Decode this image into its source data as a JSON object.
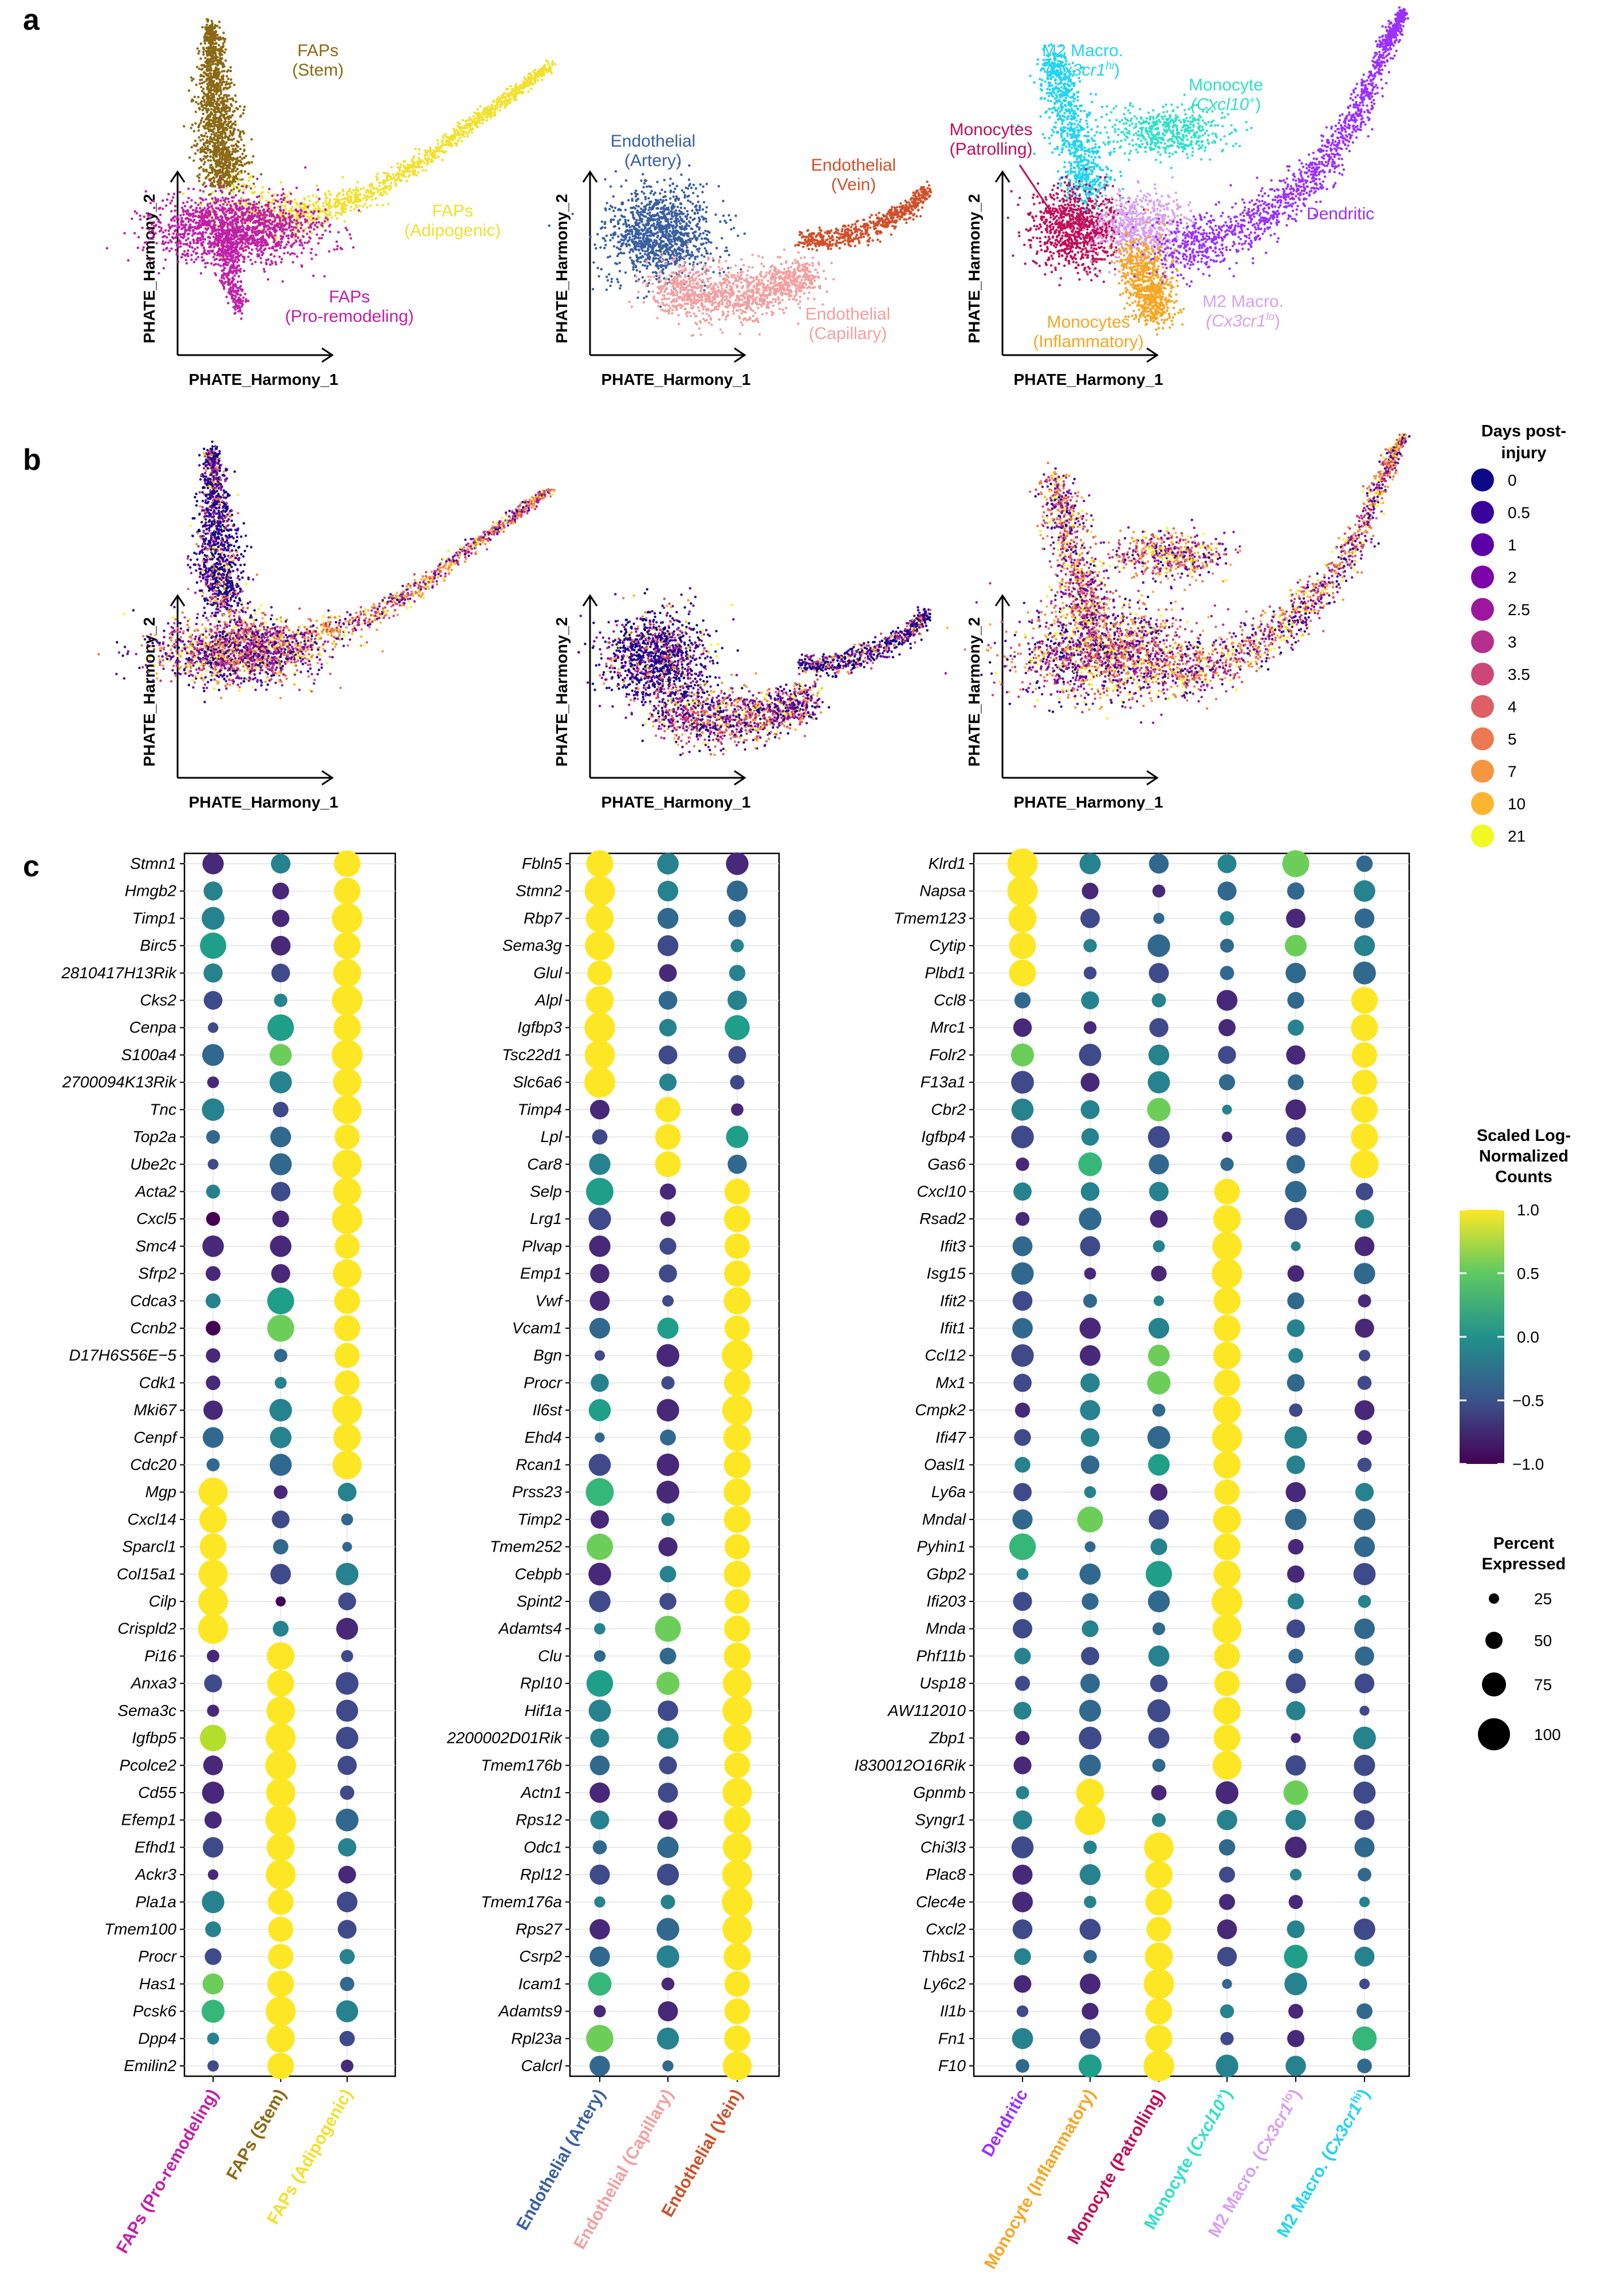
{
  "panels": {
    "a": "a",
    "b": "b",
    "c": "c"
  },
  "axes": {
    "x": "PHATE_Harmony_1",
    "y": "PHATE_Harmony_2"
  },
  "colors": {
    "faps_stem": "#8B6914",
    "faps_adipogenic": "#F2E02C",
    "faps_proremodeling": "#C020A8",
    "endo_artery": "#3A5FA0",
    "endo_capillary": "#F2A0A0",
    "endo_vein": "#D0502A",
    "m2_hi": "#22D4F0",
    "mono_cxcl10": "#30E0C8",
    "mono_patrolling": "#C0105A",
    "dendritic": "#9B30FF",
    "mono_inflammatory": "#F5A623",
    "m2_lo": "#D8A0F0"
  },
  "umap_labels": {
    "faps_stem": [
      "FAPs",
      "(Stem)"
    ],
    "faps_adipogenic": [
      "FAPs",
      "(Adipogenic)"
    ],
    "faps_proremodeling": [
      "FAPs",
      "(Pro-remodeling)"
    ],
    "endo_artery": [
      "Endothelial",
      "(Artery)"
    ],
    "endo_vein": [
      "Endothelial",
      "(Vein)"
    ],
    "endo_capillary": [
      "Endothelial",
      "(Capillary)"
    ],
    "m2_hi": [
      "M2 Macro.",
      "(Cx3cr1",
      "hi",
      ")"
    ],
    "mono_cxcl10": [
      "Monocyte",
      "(Cxcl10",
      "+",
      ")"
    ],
    "mono_patrolling": [
      "Monocytes",
      "(Patrolling)"
    ],
    "dendritic": [
      "Dendritic"
    ],
    "m2_lo": [
      "M2 Macro.",
      "(Cx3cr1",
      "lo",
      ")"
    ],
    "mono_inflammatory": [
      "Monocytes",
      "(Inflammatory)"
    ]
  },
  "days_legend": {
    "title": [
      "Days post-",
      "injury"
    ],
    "entries": [
      {
        "label": "0",
        "color": "#0D0887"
      },
      {
        "label": "0.5",
        "color": "#3A049A"
      },
      {
        "label": "1",
        "color": "#5C01A6"
      },
      {
        "label": "2",
        "color": "#7E03A8"
      },
      {
        "label": "2.5",
        "color": "#9C179E"
      },
      {
        "label": "3",
        "color": "#B52F8C"
      },
      {
        "label": "3.5",
        "color": "#CC4778"
      },
      {
        "label": "4",
        "color": "#DE5F65"
      },
      {
        "label": "5",
        "color": "#ED7953"
      },
      {
        "label": "7",
        "color": "#F89540"
      },
      {
        "label": "10",
        "color": "#FDB42F"
      },
      {
        "label": "21",
        "color": "#F0F921"
      }
    ]
  },
  "colorbar": {
    "title": [
      "Scaled Log-",
      "Normalized",
      "Counts"
    ],
    "ticks": [
      "1.0",
      "0.5",
      "0.0",
      "−0.5",
      "−1.0"
    ]
  },
  "size_legend": {
    "title": [
      "Percent",
      "Expressed"
    ],
    "entries": [
      "25",
      "50",
      "75",
      "100"
    ]
  },
  "chart_data": [
    {
      "type": "scatter",
      "panel": "c",
      "chart": "dot plot",
      "color_scale": "viridis, scaled log-normalized counts from −1.0 to 1.0",
      "size_scale": "percent expressed, 25 to 100",
      "categories": [
        "FAPs (Pro-remodeling)",
        "FAPs (Stem)",
        "FAPs (Adipogenic)"
      ],
      "category_colors": [
        "#C020A8",
        "#8B6914",
        "#F2E02C"
      ],
      "genes": [
        "Stmn1",
        "Hmgb2",
        "Timp1",
        "Birc5",
        "2810417H13Rik",
        "Cks2",
        "Cenpa",
        "S100a4",
        "2700094K13Rik",
        "Tnc",
        "Top2a",
        "Ube2c",
        "Acta2",
        "Cxcl5",
        "Smc4",
        "Sfrp2",
        "Cdca3",
        "Ccnb2",
        "D17H6S56E−5",
        "Cdk1",
        "Mki67",
        "Cenpf",
        "Cdc20",
        "Mgp",
        "Cxcl14",
        "Sparcl1",
        "Col15a1",
        "Cilp",
        "Crispld2",
        "Pi16",
        "Anxa3",
        "Sema3c",
        "Igfbp5",
        "Pcolce2",
        "Cd55",
        "Efemp1",
        "Efhd1",
        "Ackr3",
        "Pla1a",
        "Tmem100",
        "Procr",
        "Has1",
        "Pcsk6",
        "Dpp4",
        "Emilin2"
      ],
      "groups": [
        [
          0,
          23,
          2
        ],
        [
          23,
          29,
          0
        ],
        [
          29,
          45,
          1
        ]
      ]
    },
    {
      "type": "scatter",
      "panel": "c",
      "chart": "dot plot",
      "color_scale": "viridis, scaled log-normalized counts from −1.0 to 1.0",
      "size_scale": "percent expressed, 25 to 100",
      "categories": [
        "Endothelial (Artery)",
        "Endothelial (Capillary)",
        "Endothelial (Vein)"
      ],
      "category_colors": [
        "#3A5FA0",
        "#F2A0A0",
        "#D0502A"
      ],
      "genes": [
        "Fbln5",
        "Stmn2",
        "Rbp7",
        "Sema3g",
        "Glul",
        "Alpl",
        "Igfbp3",
        "Tsc22d1",
        "Slc6a6",
        "Timp4",
        "Lpl",
        "Car8",
        "Selp",
        "Lrg1",
        "Plvap",
        "Emp1",
        "Vwf",
        "Vcam1",
        "Bgn",
        "Procr",
        "Il6st",
        "Ehd4",
        "Rcan1",
        "Prss23",
        "Timp2",
        "Tmem252",
        "Cebpb",
        "Spint2",
        "Adamts4",
        "Clu",
        "Rpl10",
        "Hif1a",
        "2200002D01Rik",
        "Tmem176b",
        "Actn1",
        "Rps12",
        "Odc1",
        "Rpl12",
        "Tmem176a",
        "Rps27",
        "Csrp2",
        "Icam1",
        "Adamts9",
        "Rpl23a",
        "Calcrl"
      ],
      "groups": [
        [
          0,
          9,
          0
        ],
        [
          9,
          12,
          1
        ],
        [
          12,
          45,
          2
        ]
      ]
    },
    {
      "type": "scatter",
      "panel": "c",
      "chart": "dot plot",
      "color_scale": "viridis, scaled log-normalized counts from −1.0 to 1.0",
      "size_scale": "percent expressed, 25 to 100",
      "categories": [
        "Dendritic",
        "Monocyte (Inflammatory)",
        "Monocyte (Patrolling)",
        "Monocyte (Cxcl10+)",
        "M2 Macro. (Cx3cr1lo)",
        "M2 Macro. (Cx3cr1hi)"
      ],
      "category_labels": [
        {
          "main": "Dendritic"
        },
        {
          "main": "Monocyte (Inflammatory)"
        },
        {
          "main": "Monocyte (Patrolling)"
        },
        {
          "main": "Monocyte (",
          "ital": "Cxcl10",
          "sup": "+",
          "end": ")"
        },
        {
          "main": "M2 Macro. (",
          "ital": "Cx3cr1",
          "sup": "lo",
          "end": ")"
        },
        {
          "main": "M2 Macro. (",
          "ital": "Cx3cr1",
          "sup": "hi",
          "end": ")"
        }
      ],
      "category_colors": [
        "#9B30FF",
        "#F5A623",
        "#C0105A",
        "#30E0C8",
        "#D8A0F0",
        "#22D4F0"
      ],
      "genes": [
        "Klrd1",
        "Napsa",
        "Tmem123",
        "Cytip",
        "Plbd1",
        "Ccl8",
        "Mrc1",
        "Folr2",
        "F13a1",
        "Cbr2",
        "Igfbp4",
        "Gas6",
        "Cxcl10",
        "Rsad2",
        "Ifit3",
        "Isg15",
        "Ifit2",
        "Ifit1",
        "Ccl12",
        "Mx1",
        "Cmpk2",
        "Ifi47",
        "Oasl1",
        "Ly6a",
        "Mndal",
        "Pyhin1",
        "Gbp2",
        "Ifi203",
        "Mnda",
        "Phf11b",
        "Usp18",
        "AW112010",
        "Zbp1",
        "I830012O16Rik",
        "Gpnmb",
        "Syngr1",
        "Chi3l3",
        "Plac8",
        "Clec4e",
        "Cxcl2",
        "Thbs1",
        "Ly6c2",
        "Il1b",
        "Fn1",
        "F10"
      ],
      "groups": [
        [
          0,
          5,
          0
        ],
        [
          5,
          12,
          5
        ],
        [
          12,
          34,
          3
        ],
        [
          34,
          36,
          1
        ],
        [
          36,
          45,
          2
        ]
      ]
    }
  ]
}
